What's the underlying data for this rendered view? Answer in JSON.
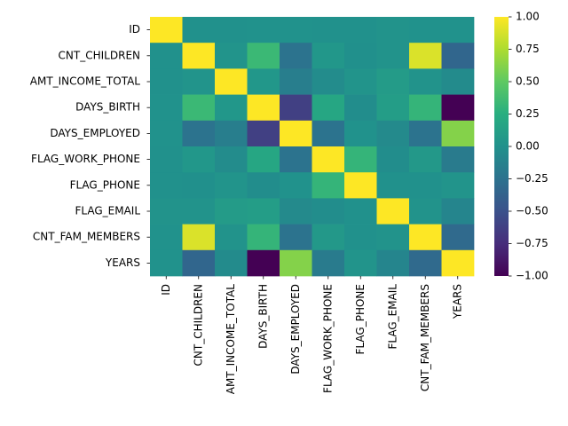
{
  "chart_data": {
    "type": "heatmap",
    "title": "",
    "xlabel": "",
    "ylabel": "",
    "colormap": "viridis",
    "labels": [
      "ID",
      "CNT_CHILDREN",
      "AMT_INCOME_TOTAL",
      "DAYS_BIRTH",
      "DAYS_EMPLOYED",
      "FLAG_WORK_PHONE",
      "FLAG_PHONE",
      "FLAG_EMAIL",
      "CNT_FAM_MEMBERS",
      "YEARS"
    ],
    "matrix": [
      [
        1.0,
        0.0,
        0.0,
        0.01,
        0.01,
        0.0,
        0.0,
        0.02,
        0.01,
        0.01
      ],
      [
        0.0,
        1.0,
        0.03,
        0.34,
        -0.24,
        0.05,
        -0.01,
        0.02,
        0.89,
        -0.34
      ],
      [
        0.0,
        0.03,
        1.0,
        0.05,
        -0.15,
        -0.04,
        0.03,
        0.09,
        0.02,
        -0.05
      ],
      [
        0.01,
        0.34,
        0.05,
        1.0,
        -0.62,
        0.18,
        -0.03,
        0.1,
        0.31,
        -1.0
      ],
      [
        0.01,
        -0.24,
        -0.15,
        -0.62,
        1.0,
        -0.24,
        0.01,
        -0.06,
        -0.24,
        0.62
      ],
      [
        0.0,
        0.05,
        -0.04,
        0.18,
        -0.24,
        1.0,
        0.31,
        -0.03,
        0.06,
        -0.18
      ],
      [
        0.0,
        -0.01,
        0.03,
        -0.03,
        0.01,
        0.31,
        1.0,
        0.0,
        0.0,
        0.03
      ],
      [
        0.02,
        0.02,
        0.09,
        0.1,
        -0.06,
        -0.03,
        0.0,
        1.0,
        0.02,
        -0.1
      ],
      [
        0.01,
        0.89,
        0.02,
        0.31,
        -0.24,
        0.06,
        0.0,
        0.02,
        1.0,
        -0.31
      ],
      [
        0.01,
        -0.34,
        -0.05,
        -1.0,
        0.62,
        -0.18,
        0.03,
        -0.1,
        -0.31,
        1.0
      ]
    ],
    "colorbar": {
      "range": [
        -1.0,
        1.0
      ],
      "ticks": [
        1.0,
        0.75,
        0.5,
        0.25,
        0.0,
        -0.25,
        -0.5,
        -0.75,
        -1.0
      ],
      "tick_labels": [
        "1.00",
        "0.75",
        "0.50",
        "0.25",
        "0.00",
        "−0.25",
        "−0.50",
        "−0.75",
        "−1.00"
      ]
    },
    "grid": false,
    "legend": "none"
  }
}
